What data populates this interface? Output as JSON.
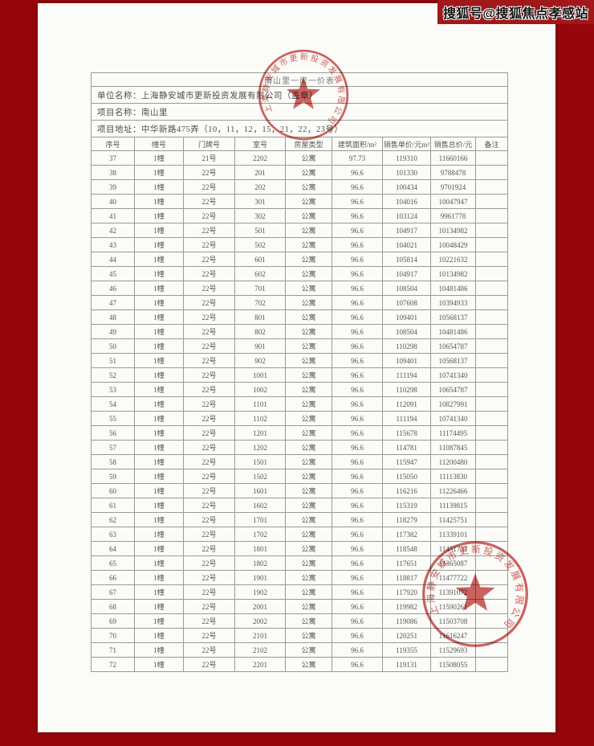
{
  "watermark": "搜狐号@搜狐焦点孝感站",
  "document": {
    "title": "南山里一房一价表",
    "info_rows": [
      {
        "label": "单位名称：",
        "value": "上海静安城市更新投资发展有限公司（盖章）"
      },
      {
        "label": "项目名称：",
        "value": "南山里"
      },
      {
        "label": "项目地址：",
        "value": "中华新路475弄（10，11，12，15，21，22，23号）"
      }
    ],
    "table": {
      "headers": [
        "序号",
        "幢号",
        "门牌号",
        "室号",
        "房屋类型",
        "建筑面积/m²",
        "销售单价/元m²",
        "销售总价/元",
        "备注"
      ],
      "rows": [
        [
          "37",
          "1幢",
          "21号",
          "2202",
          "公寓",
          "97.73",
          "119310",
          "11660166",
          ""
        ],
        [
          "38",
          "1幢",
          "22号",
          "201",
          "公寓",
          "96.6",
          "101330",
          "9788478",
          ""
        ],
        [
          "39",
          "1幢",
          "22号",
          "202",
          "公寓",
          "96.6",
          "100434",
          "9701924",
          ""
        ],
        [
          "40",
          "1幢",
          "22号",
          "301",
          "公寓",
          "96.6",
          "104016",
          "10047947",
          ""
        ],
        [
          "41",
          "1幢",
          "22号",
          "302",
          "公寓",
          "96.6",
          "103124",
          "9961778",
          ""
        ],
        [
          "42",
          "1幢",
          "22号",
          "501",
          "公寓",
          "96.6",
          "104917",
          "10134982",
          ""
        ],
        [
          "43",
          "1幢",
          "22号",
          "502",
          "公寓",
          "96.6",
          "104021",
          "10048429",
          ""
        ],
        [
          "44",
          "1幢",
          "22号",
          "601",
          "公寓",
          "96.6",
          "105814",
          "10221632",
          ""
        ],
        [
          "45",
          "1幢",
          "22号",
          "602",
          "公寓",
          "96.6",
          "104917",
          "10134982",
          ""
        ],
        [
          "46",
          "1幢",
          "22号",
          "701",
          "公寓",
          "96.6",
          "108504",
          "10481486",
          ""
        ],
        [
          "47",
          "1幢",
          "22号",
          "702",
          "公寓",
          "96.6",
          "107608",
          "10394933",
          ""
        ],
        [
          "48",
          "1幢",
          "22号",
          "801",
          "公寓",
          "96.6",
          "109401",
          "10568137",
          ""
        ],
        [
          "49",
          "1幢",
          "22号",
          "802",
          "公寓",
          "96.6",
          "108504",
          "10481486",
          ""
        ],
        [
          "50",
          "1幢",
          "22号",
          "901",
          "公寓",
          "96.6",
          "110298",
          "10654787",
          ""
        ],
        [
          "51",
          "1幢",
          "22号",
          "902",
          "公寓",
          "96.6",
          "109401",
          "10568137",
          ""
        ],
        [
          "52",
          "1幢",
          "22号",
          "1001",
          "公寓",
          "96.6",
          "111194",
          "10741340",
          ""
        ],
        [
          "53",
          "1幢",
          "22号",
          "1002",
          "公寓",
          "96.6",
          "110298",
          "10654787",
          ""
        ],
        [
          "54",
          "1幢",
          "22号",
          "1101",
          "公寓",
          "96.6",
          "112091",
          "10827991",
          ""
        ],
        [
          "55",
          "1幢",
          "22号",
          "1102",
          "公寓",
          "96.6",
          "111194",
          "10741340",
          ""
        ],
        [
          "56",
          "1幢",
          "22号",
          "1201",
          "公寓",
          "96.6",
          "115678",
          "11174495",
          ""
        ],
        [
          "57",
          "1幢",
          "22号",
          "1202",
          "公寓",
          "96.6",
          "114781",
          "11087845",
          ""
        ],
        [
          "58",
          "1幢",
          "22号",
          "1501",
          "公寓",
          "96.6",
          "115947",
          "11200480",
          ""
        ],
        [
          "59",
          "1幢",
          "22号",
          "1502",
          "公寓",
          "96.6",
          "115050",
          "11113830",
          ""
        ],
        [
          "60",
          "1幢",
          "22号",
          "1601",
          "公寓",
          "96.6",
          "116216",
          "11226466",
          ""
        ],
        [
          "61",
          "1幢",
          "22号",
          "1602",
          "公寓",
          "96.6",
          "115319",
          "11139815",
          ""
        ],
        [
          "62",
          "1幢",
          "22号",
          "1701",
          "公寓",
          "96.6",
          "118279",
          "11425751",
          ""
        ],
        [
          "63",
          "1幢",
          "22号",
          "1702",
          "公寓",
          "96.6",
          "117382",
          "11339101",
          ""
        ],
        [
          "64",
          "1幢",
          "22号",
          "1801",
          "公寓",
          "96.6",
          "118548",
          "11451737",
          ""
        ],
        [
          "65",
          "1幢",
          "22号",
          "1802",
          "公寓",
          "96.6",
          "117651",
          "11365087",
          ""
        ],
        [
          "66",
          "1幢",
          "22号",
          "1901",
          "公寓",
          "96.6",
          "118817",
          "11477722",
          ""
        ],
        [
          "67",
          "1幢",
          "22号",
          "1902",
          "公寓",
          "96.6",
          "117920",
          "11391072",
          ""
        ],
        [
          "68",
          "1幢",
          "22号",
          "2001",
          "公寓",
          "96.6",
          "119982",
          "11590261",
          ""
        ],
        [
          "69",
          "1幢",
          "22号",
          "2002",
          "公寓",
          "96.6",
          "119086",
          "11503708",
          ""
        ],
        [
          "70",
          "1幢",
          "22号",
          "2101",
          "公寓",
          "96.6",
          "120251",
          "11616247",
          ""
        ],
        [
          "71",
          "1幢",
          "22号",
          "2102",
          "公寓",
          "96.6",
          "119355",
          "11529693",
          ""
        ],
        [
          "72",
          "1幢",
          "22号",
          "2201",
          "公寓",
          "96.6",
          "119131",
          "11508055",
          ""
        ]
      ]
    },
    "stamps": {
      "company": "上海静安城市更新投资发展有限公司"
    }
  },
  "colors": {
    "background_red": "#96070c",
    "watermark_band_red": "#a1181a",
    "stamp_red": "#c23b36",
    "paper": "#fbfbf8"
  }
}
